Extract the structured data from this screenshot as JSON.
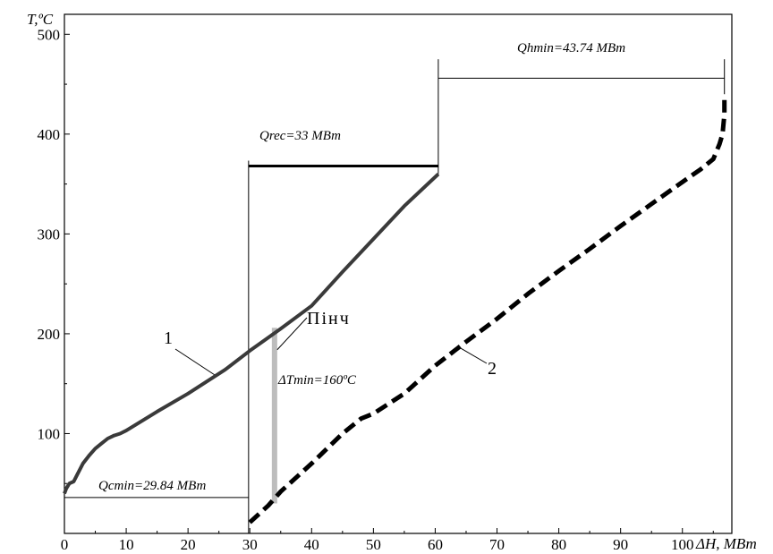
{
  "chart_data": {
    "type": "line",
    "xlabel": "ΔH, МВт",
    "ylabel": "T,ºC",
    "xlim": [
      0,
      108
    ],
    "ylim": [
      0,
      520
    ],
    "x_ticks": [
      0,
      10,
      20,
      30,
      40,
      50,
      60,
      70,
      80,
      90,
      100
    ],
    "y_ticks": [
      100,
      200,
      300,
      400,
      500
    ],
    "grid": false,
    "series": [
      {
        "name": "1",
        "style": "solid",
        "color": "#3a3a3a",
        "points": [
          [
            0,
            40
          ],
          [
            0.3,
            45
          ],
          [
            0.8,
            50
          ],
          [
            1.5,
            52
          ],
          [
            2,
            58
          ],
          [
            3,
            70
          ],
          [
            4,
            78
          ],
          [
            5,
            85
          ],
          [
            6,
            90
          ],
          [
            7,
            95
          ],
          [
            8,
            98
          ],
          [
            9,
            100
          ],
          [
            10,
            103
          ],
          [
            15,
            122
          ],
          [
            20,
            140
          ],
          [
            26,
            164
          ],
          [
            30,
            183
          ],
          [
            35,
            205
          ],
          [
            40,
            228
          ],
          [
            45,
            262
          ],
          [
            50,
            295
          ],
          [
            55,
            328
          ],
          [
            60.5,
            360
          ]
        ]
      },
      {
        "name": "2",
        "style": "dashed",
        "color": "#000000",
        "points": [
          [
            30,
            11
          ],
          [
            33,
            28
          ],
          [
            35,
            42
          ],
          [
            40,
            70
          ],
          [
            45,
            100
          ],
          [
            48,
            115
          ],
          [
            50,
            120
          ],
          [
            55,
            140
          ],
          [
            60,
            168
          ],
          [
            65,
            192
          ],
          [
            70,
            215
          ],
          [
            75,
            240
          ],
          [
            80,
            263
          ],
          [
            85,
            285
          ],
          [
            90,
            308
          ],
          [
            95,
            330
          ],
          [
            100,
            352
          ],
          [
            103,
            365
          ],
          [
            105,
            375
          ],
          [
            106,
            390
          ],
          [
            106.5,
            400
          ],
          [
            106.8,
            420
          ],
          [
            106.8,
            440
          ]
        ]
      }
    ],
    "annotations": {
      "q_rec": {
        "label": "Qrec=33 МВт",
        "x_start": 29.8,
        "x_end": 60.5,
        "y": 368
      },
      "q_hmin": {
        "label": "Qhmin=43.74 МВт",
        "x_start": 60.5,
        "x_end": 106.8,
        "y": 456
      },
      "q_cmin": {
        "label": "Qcmin=29.84 МВт",
        "x_start": 0,
        "x_end": 29.8,
        "y": 36
      },
      "pinch": {
        "label": "Пінч",
        "x": 34,
        "y_low": 30,
        "y_high": 206
      },
      "dt_min": {
        "label": "ΔTmin=160ºC"
      },
      "curve_labels": [
        "1",
        "2"
      ]
    }
  }
}
